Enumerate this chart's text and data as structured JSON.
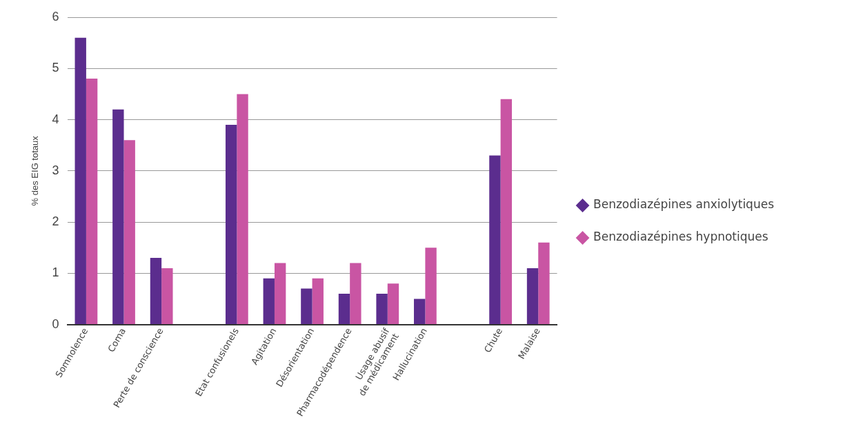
{
  "chart_data": {
    "type": "bar",
    "ylabel": "% des EIG totaux",
    "categories": [
      "Somnolence",
      "Coma",
      "Perte de conscience",
      null,
      "Etat confusionels",
      "Agitation",
      "Désorientation",
      "Pharmacodépendence",
      "Usage abusif de médicament",
      "Hallucination",
      null,
      "Chute",
      "Malaise"
    ],
    "series": [
      {
        "name": "Benzodiazépines anxiolytiques",
        "color": "#5b2d8e",
        "values": [
          5.6,
          4.2,
          1.3,
          null,
          3.9,
          0.9,
          0.7,
          0.6,
          0.6,
          0.5,
          null,
          3.3,
          1.1
        ]
      },
      {
        "name": "Benzodiazépines hypnotiques",
        "color": "#c955a3",
        "values": [
          4.8,
          3.6,
          1.1,
          null,
          4.5,
          1.2,
          0.9,
          1.2,
          0.8,
          1.5,
          null,
          4.4,
          1.6
        ]
      }
    ],
    "ylim": [
      0,
      6
    ],
    "yticks": [
      0,
      1,
      2,
      3,
      4,
      5,
      6
    ],
    "grid": "y",
    "legend": "right",
    "marker": "diamond"
  }
}
